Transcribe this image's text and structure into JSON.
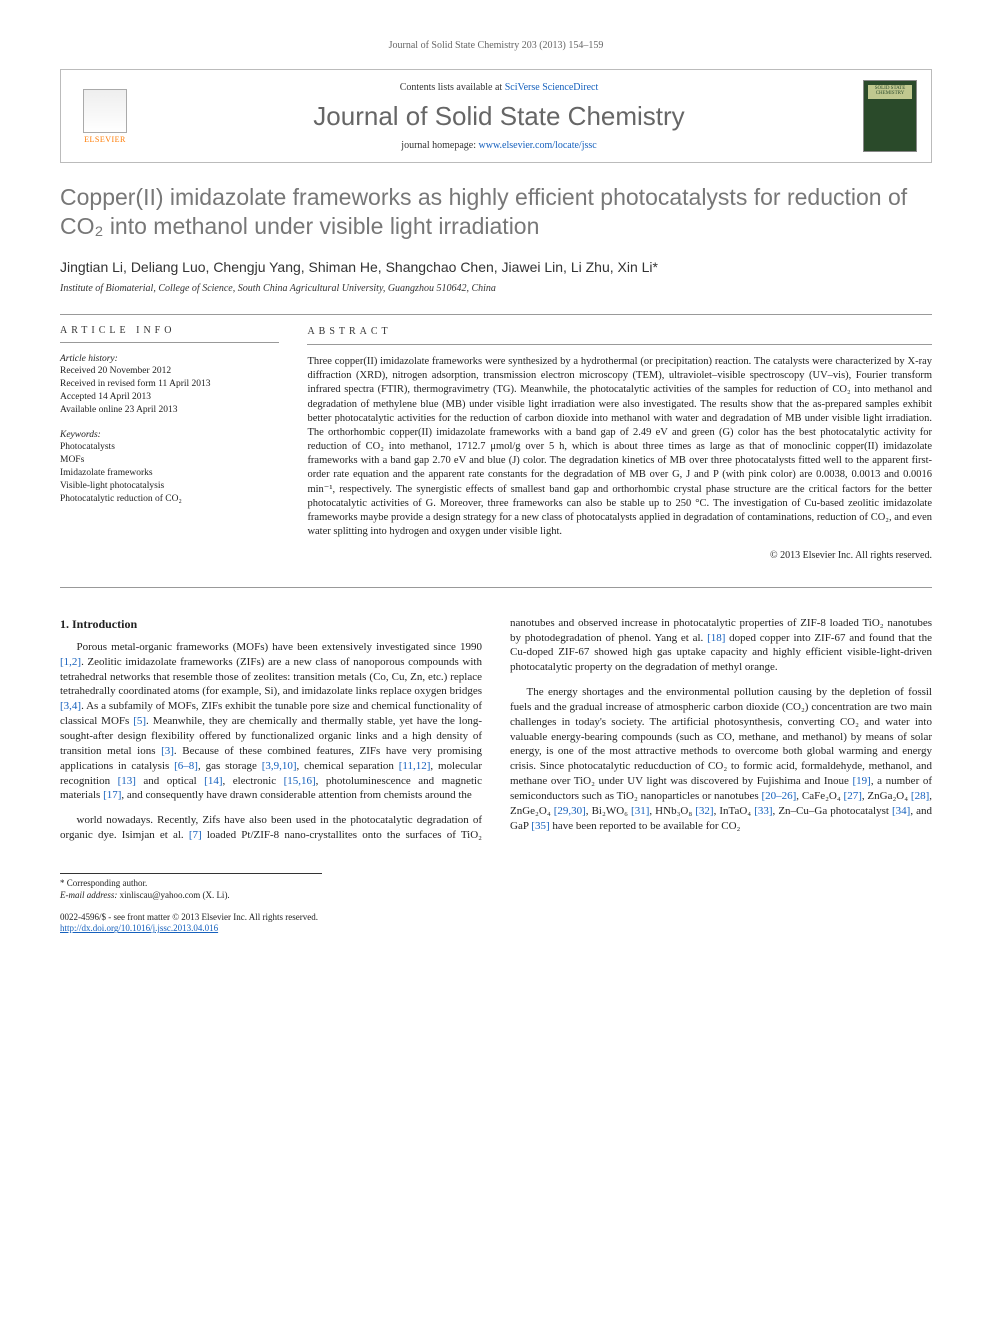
{
  "header": {
    "running_head": "Journal of Solid State Chemistry 203 (2013) 154–159"
  },
  "journal_box": {
    "contents_prefix": "Contents lists available at ",
    "contents_link": "SciVerse ScienceDirect",
    "journal_name": "Journal of Solid State Chemistry",
    "homepage_prefix": "journal homepage: ",
    "homepage_url": "www.elsevier.com/locate/jssc",
    "publisher_logo_text": "ELSEVIER",
    "cover_caption": "SOLID STATE CHEMISTRY"
  },
  "article": {
    "title_html": "Copper(II) imidazolate frameworks as highly efficient photocatalysts for reduction of CO₂ into methanol under visible light irradiation",
    "authors": "Jingtian Li, Deliang Luo, Chengju Yang, Shiman He, Shangchao Chen, Jiawei Lin, Li Zhu, Xin Li",
    "corresponding_marker": "*",
    "affiliation": "Institute of Biomaterial, College of Science, South China Agricultural University, Guangzhou 510642, China"
  },
  "article_info": {
    "label": "ARTICLE INFO",
    "history_label": "Article history:",
    "received": "Received 20 November 2012",
    "revised": "Received in revised form 11 April 2013",
    "accepted": "Accepted 14 April 2013",
    "online": "Available online 23 April 2013",
    "keywords_label": "Keywords:",
    "keywords": [
      "Photocatalysts",
      "MOFs",
      "Imidazolate frameworks",
      "Visible-light photocatalysis",
      "Photocatalytic reduction of CO₂"
    ]
  },
  "abstract": {
    "label": "ABSTRACT",
    "text": "Three copper(II) imidazolate frameworks were synthesized by a hydrothermal (or precipitation) reaction. The catalysts were characterized by X-ray diffraction (XRD), nitrogen adsorption, transmission electron microscopy (TEM), ultraviolet–visible spectroscopy (UV–vis), Fourier transform infrared spectra (FTIR), thermogravimetry (TG). Meanwhile, the photocatalytic activities of the samples for reduction of CO₂ into methanol and degradation of methylene blue (MB) under visible light irradiation were also investigated. The results show that the as-prepared samples exhibit better photocatalytic activities for the reduction of carbon dioxide into methanol with water and degradation of MB under visible light irradiation. The orthorhombic copper(II) imidazolate frameworks with a band gap of 2.49 eV and green (G) color has the best photocatalytic activity for reduction of CO₂ into methanol, 1712.7 μmol/g over 5 h, which is about three times as large as that of monoclinic copper(II) imidazolate frameworks with a band gap 2.70 eV and blue (J) color. The degradation kinetics of MB over three photocatalysts fitted well to the apparent first-order rate equation and the apparent rate constants for the degradation of MB over G, J and P (with pink color) are 0.0038, 0.0013 and 0.0016 min⁻¹, respectively. The synergistic effects of smallest band gap and orthorhombic crystal phase structure are the critical factors for the better photocatalytic activities of G. Moreover, three frameworks can also be stable up to 250 °C. The investigation of Cu-based zeolitic imidazolate frameworks maybe provide a design strategy for a new class of photocatalysts applied in degradation of contaminations, reduction of CO₂, and even water splitting into hydrogen and oxygen under visible light.",
    "copyright": "© 2013 Elsevier Inc. All rights reserved."
  },
  "body": {
    "section_heading": "1. Introduction",
    "p1": "Porous metal-organic frameworks (MOFs) have been extensively investigated since 1990 [1,2]. Zeolitic imidazolate frameworks (ZIFs) are a new class of nanoporous compounds with tetrahedral networks that resemble those of zeolites: transition metals (Co, Cu, Zn, etc.) replace tetrahedrally coordinated atoms (for example, Si), and imidazolate links replace oxygen bridges [3,4]. As a subfamily of MOFs, ZIFs exhibit the tunable pore size and chemical functionality of classical MOFs [5]. Meanwhile, they are chemically and thermally stable, yet have the long-sought-after design flexibility offered by functionalized organic links and a high density of transition metal ions [3]. Because of these combined features, ZIFs have very promising applications in catalysis [6–8], gas storage [3,9,10], chemical separation [11,12], molecular recognition [13] and optical [14], electronic [15,16], photoluminescence and magnetic materials [17], and consequently have drawn considerable attention from chemists around the",
    "p2": "world nowadays. Recently, Zifs have also been used in the photocatalytic degradation of organic dye. Isimjan et al. [7] loaded Pt/ZIF-8 nano-crystallites onto the surfaces of TiO₂ nanotubes and observed increase in photocatalytic properties of ZIF-8 loaded TiO₂ nanotubes by photodegradation of phenol. Yang et al. [18] doped copper into ZIF-67 and found that the Cu-doped ZIF-67 showed high gas uptake capacity and highly efficient visible-light-driven photocatalytic property on the degradation of methyl orange.",
    "p3": "The energy shortages and the environmental pollution causing by the depletion of fossil fuels and the gradual increase of atmospheric carbon dioxide (CO₂) concentration are two main challenges in today's society. The artificial photosynthesis, converting CO₂ and water into valuable energy-bearing compounds (such as CO, methane, and methanol) by means of solar energy, is one of the most attractive methods to overcome both global warming and energy crisis. Since photocatalytic reducduction of CO₂ to formic acid, formaldehyde, methanol, and methane over TiO₂ under UV light was discovered by Fujishima and Inoue [19], a number of semiconductors such as TiO₂ nanoparticles or nanotubes [20–26], CaFe₂O₄ [27], ZnGa₂O₄ [28], ZnGe₂O₄ [29,30], Bi₂WO₆ [31], HNb₃O₈ [32], InTaO₄ [33], Zn–Cu–Ga photocatalyst [34], and GaP [35] have been reported to be available for CO₂"
  },
  "footer": {
    "corr_label": "* Corresponding author.",
    "email_label": "E-mail address:",
    "email": "xinliscau@yahoo.com (X. Li).",
    "issn": "0022-4596/$ - see front matter © 2013 Elsevier Inc. All rights reserved.",
    "doi": "http://dx.doi.org/10.1016/j.jssc.2013.04.016"
  },
  "colors": {
    "link": "#1560bd",
    "title_gray": "#777777",
    "orange": "#ff7a00"
  }
}
